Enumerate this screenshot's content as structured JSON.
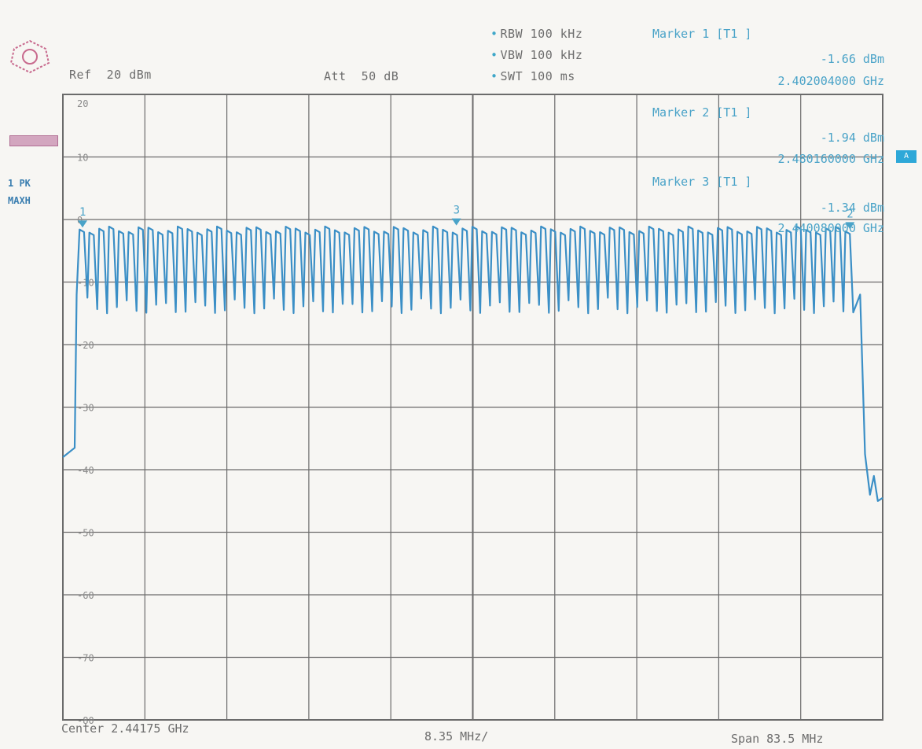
{
  "header": {
    "ref": "Ref  20 dBm",
    "att": "Att  50 dB",
    "rbw": "RBW 100 kHz",
    "vbw": "VBW 100 kHz",
    "swt": "SWT 100 ms"
  },
  "markers": [
    {
      "title": "Marker 1 [T1 ]",
      "level": "-1.66 dBm",
      "freq": "2.402004000 GHz"
    },
    {
      "title": "Marker 2 [T1 ]",
      "level": "-1.94 dBm",
      "freq": "2.480160000 GHz"
    },
    {
      "title": "Marker 3 [T1 ]",
      "level": "-1.34 dBm",
      "freq": "2.440080000 GHz"
    }
  ],
  "side": {
    "trace_line1": "1 PK",
    "trace_line2": "MAXH",
    "indicator": "A"
  },
  "footer": {
    "center": "Center 2.44175 GHz",
    "per_div": "8.35 MHz/",
    "span": "Span 83.5 MHz"
  },
  "colors": {
    "trace": "#3b8fc6",
    "grid": "#6b6b6b",
    "text": "#6d6d6d",
    "accent": "#4aa3c8"
  },
  "chart_data": {
    "type": "line",
    "title": "",
    "xlabel": "",
    "ylabel": "",
    "xlim": [
      2.4,
      2.4835
    ],
    "ylim": [
      -80,
      20
    ],
    "yticks": [
      "20",
      "10",
      "0",
      "-10",
      "-20",
      "-30",
      "-40",
      "-50",
      "-60",
      "-70",
      "-80"
    ],
    "grid": true,
    "center_ghz": 2.44175,
    "span_mhz": 83.5,
    "channels": {
      "count": 79,
      "start_ghz": 2.402,
      "step_mhz": 1.0,
      "peak_dbm": -1.6,
      "trough_dbm": -12.5
    },
    "edges": [
      {
        "x": 2.4,
        "y": -38.0
      },
      {
        "x": 2.4012,
        "y": -36.5
      },
      {
        "x": 2.4835,
        "y": -44.5
      }
    ],
    "marker_points": [
      {
        "label": "1",
        "x": 2.402004,
        "y": -1.66
      },
      {
        "label": "2",
        "x": 2.48016,
        "y": -1.94
      },
      {
        "label": "3",
        "x": 2.44008,
        "y": -1.34
      }
    ]
  }
}
